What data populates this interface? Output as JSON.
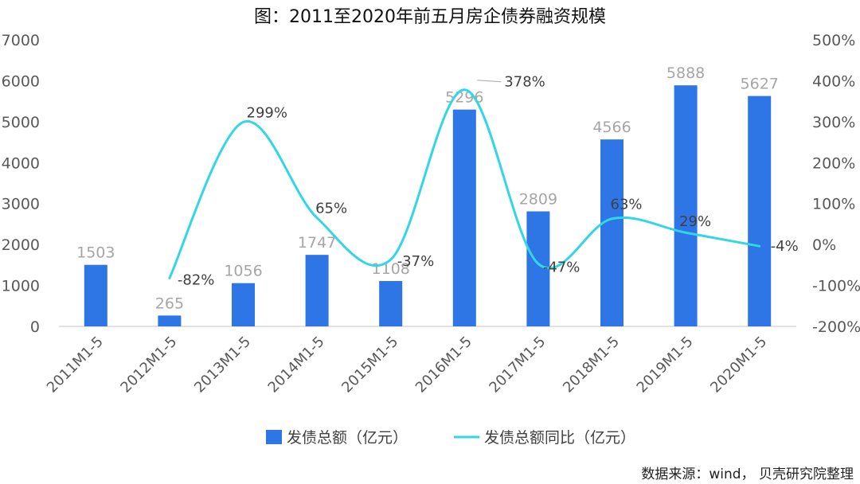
{
  "chart_data": {
    "type": "bar",
    "title": "图：2011至2020年前五月房企债券融资规模",
    "categories": [
      "2011M1-5",
      "2012M1-5",
      "2013M1-5",
      "2014M1-5",
      "2015M1-5",
      "2016M1-5",
      "2017M1-5",
      "2018M1-5",
      "2019M1-5",
      "2020M1-5"
    ],
    "series": [
      {
        "name": "发债总额（亿元）",
        "kind": "bar",
        "axis": "left",
        "color": "#2e75e6",
        "values": [
          1503,
          265,
          1056,
          1747,
          1108,
          5296,
          2809,
          4566,
          5888,
          5627
        ],
        "labels": [
          "1503",
          "265",
          "1056",
          "1747",
          "1108",
          "5296",
          "2809",
          "4566",
          "5888",
          "5627"
        ]
      },
      {
        "name": "发债总额同比（亿元）",
        "kind": "line",
        "axis": "right",
        "color": "#33d6e6",
        "values": [
          null,
          -82,
          299,
          65,
          -37,
          378,
          -47,
          63,
          29,
          -4
        ],
        "labels": [
          "",
          "-82%",
          "299%",
          "65%",
          "-37%",
          "378%",
          "-47%",
          "63%",
          "29%",
          "-4%"
        ]
      }
    ],
    "y_left": {
      "min": 0,
      "max": 7000,
      "ticks": [
        "0",
        "1000",
        "2000",
        "3000",
        "4000",
        "5000",
        "6000",
        "7000"
      ]
    },
    "y_right": {
      "min": -200,
      "max": 500,
      "ticks": [
        "-200%",
        "-100%",
        "0%",
        "100%",
        "200%",
        "300%",
        "400%",
        "500%"
      ]
    },
    "grid": false,
    "legend_position": "bottom"
  },
  "source_note": "数据来源：wind，  贝壳研究院整理"
}
